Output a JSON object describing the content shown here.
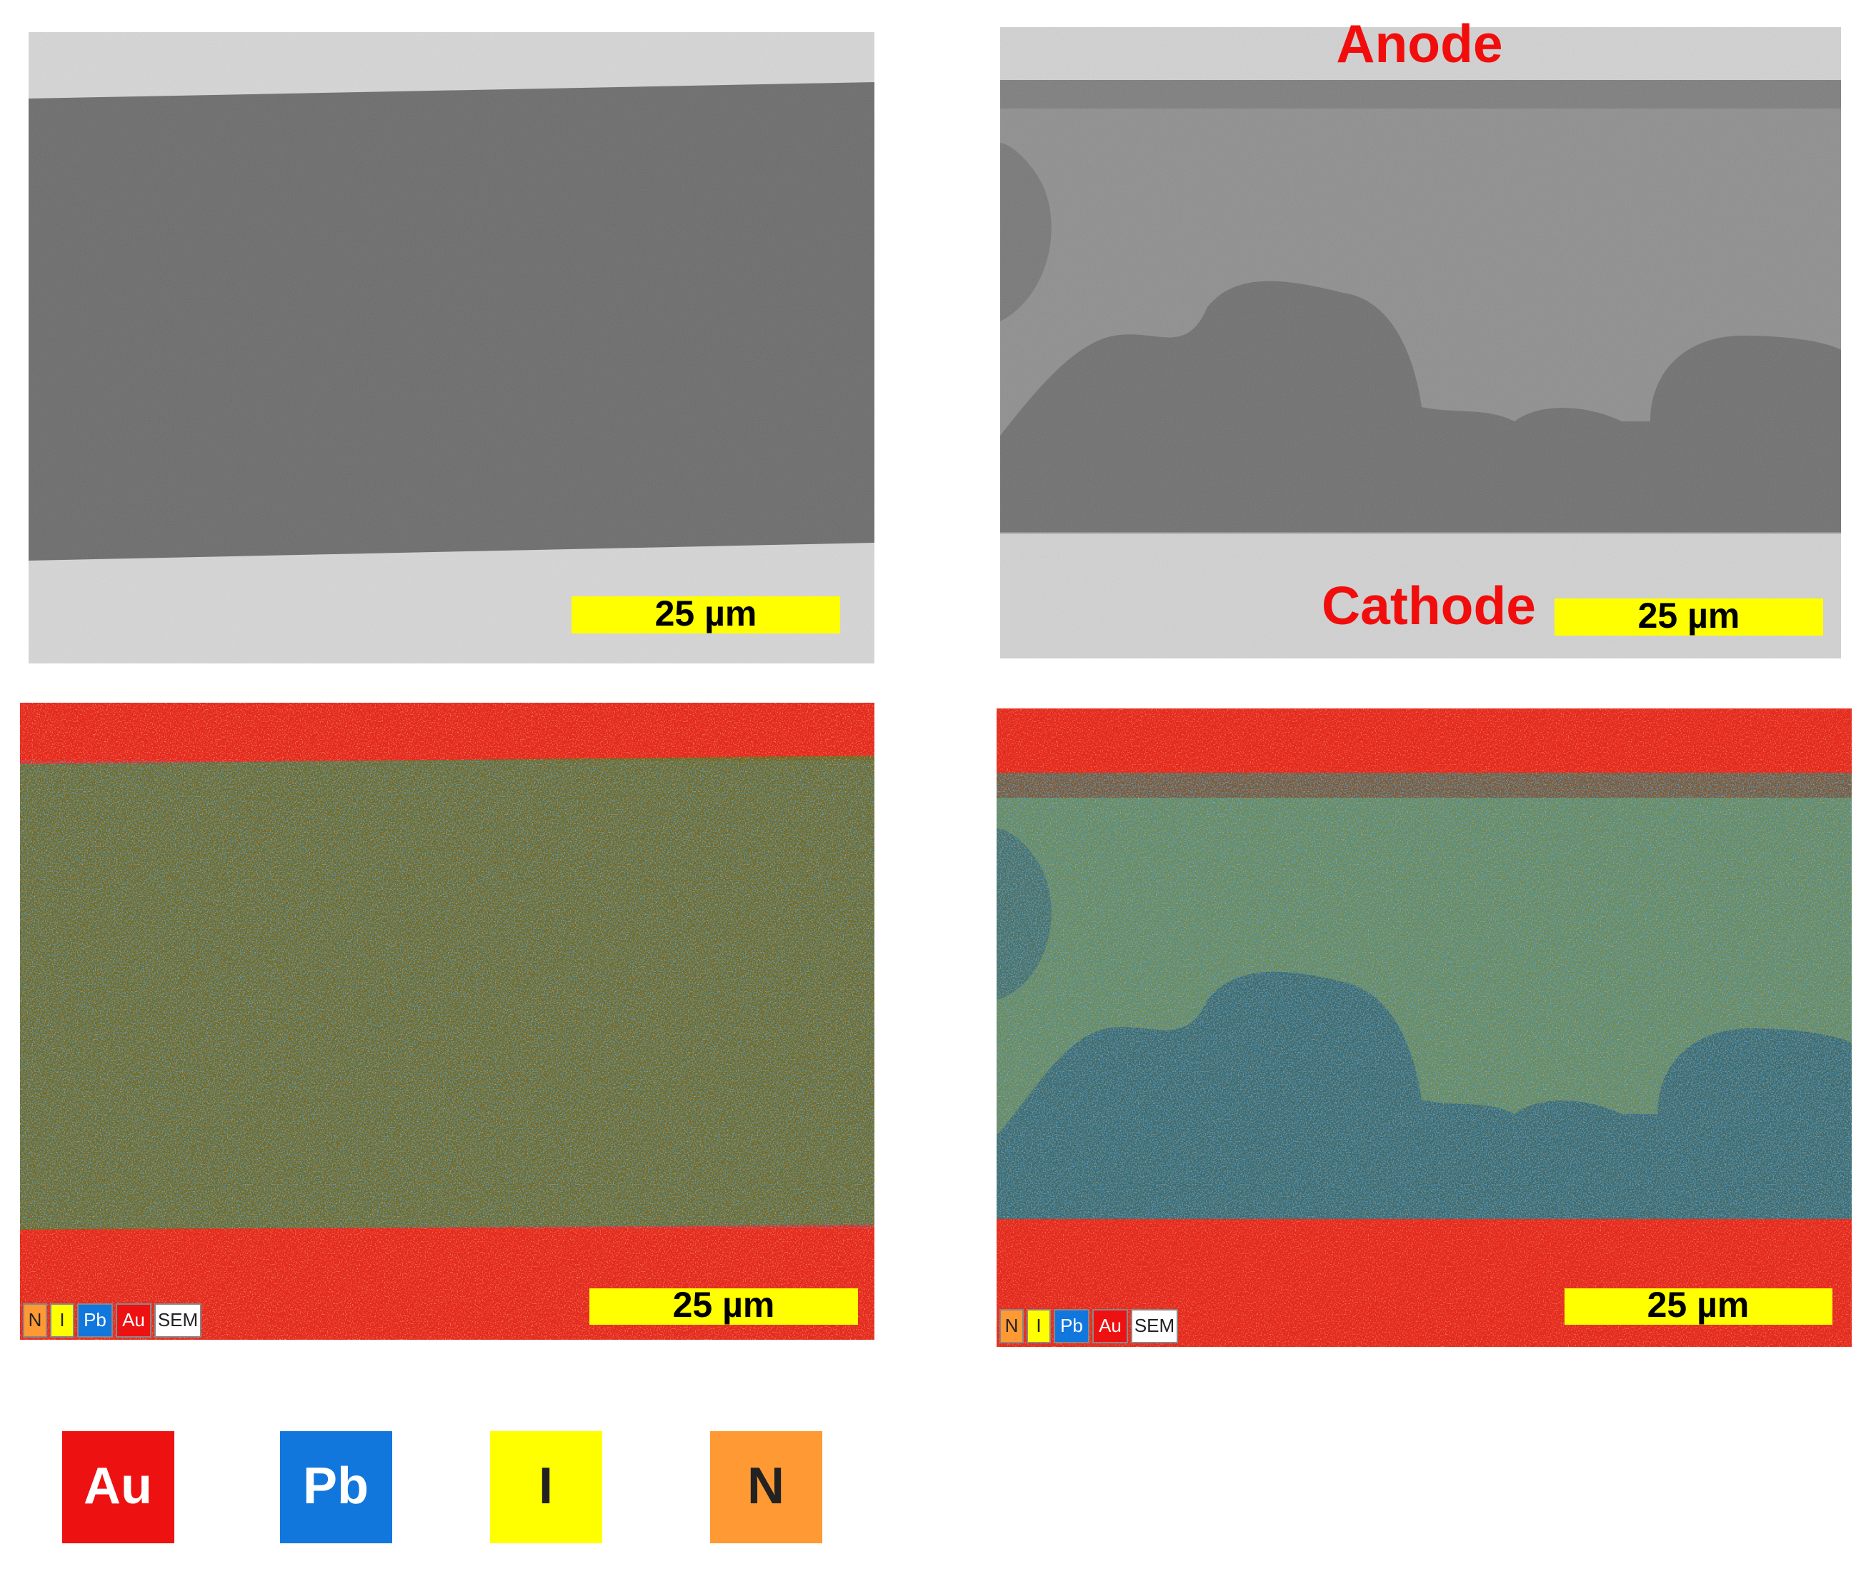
{
  "panels": [
    {
      "scale_bar": "25 µm"
    },
    {
      "top_label": "Anode",
      "bottom_label": "Cathode",
      "scale_bar": "25 µm"
    },
    {
      "scale_bar": "25 µm",
      "layers": [
        "N",
        "I",
        "Pb",
        "Au",
        "SEM"
      ]
    },
    {
      "scale_bar": "25 µm",
      "layers": [
        "N",
        "I",
        "Pb",
        "Au",
        "SEM"
      ]
    }
  ],
  "legend": [
    "Au",
    "Pb",
    "I",
    "N"
  ]
}
